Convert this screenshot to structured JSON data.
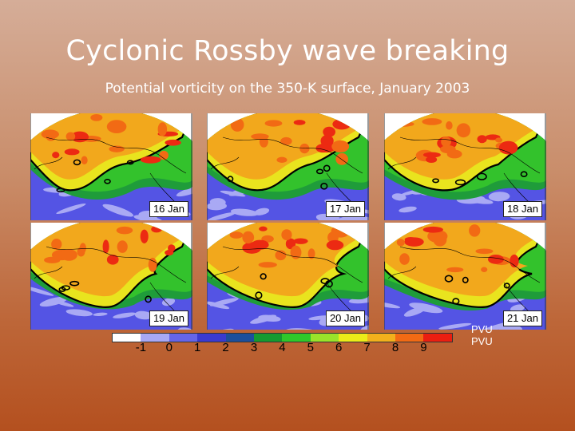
{
  "slide": {
    "title": "Cyclonic Rossby wave breaking",
    "subtitle": "Potential vorticity on the 350-K surface, January 2003"
  },
  "panels": [
    {
      "label": "16 Jan"
    },
    {
      "label": "17 Jan"
    },
    {
      "label": "18 Jan"
    },
    {
      "label": "19 Jan"
    },
    {
      "label": "20 Jan"
    },
    {
      "label": "21 Jan"
    }
  ],
  "colorbar": {
    "colors": [
      "#ffffff",
      "#a8a8f4",
      "#6565e8",
      "#3a3ad0",
      "#1c4f9c",
      "#159a30",
      "#2fc82a",
      "#9ae32a",
      "#ecec18",
      "#f2b01c",
      "#f26a14",
      "#ec1e10"
    ],
    "ticks": [
      "-1",
      "0",
      "1",
      "2",
      "3",
      "4",
      "5",
      "6",
      "7",
      "8",
      "9"
    ],
    "unit_top": "PVU",
    "unit_bottom": "PVU"
  }
}
